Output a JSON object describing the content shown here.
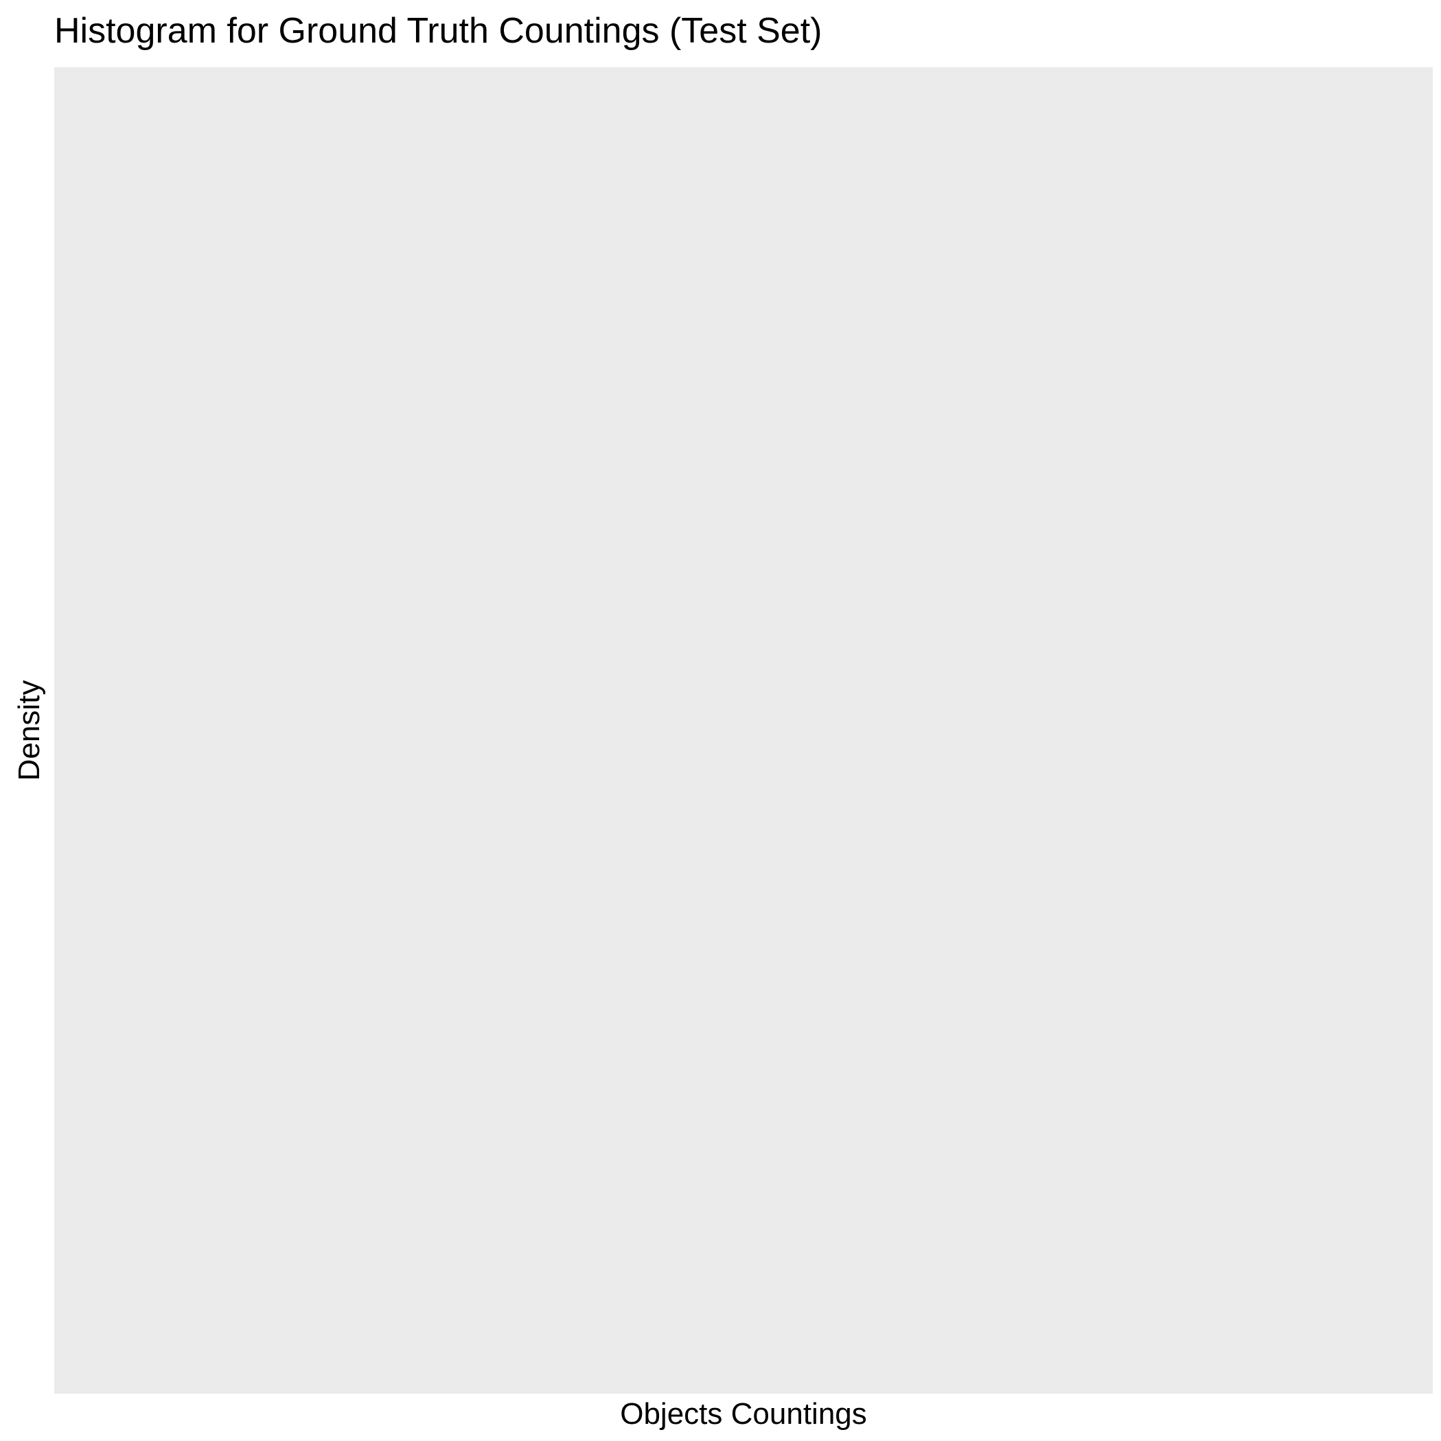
{
  "colors": {
    "panel_background": "#ebebeb",
    "page_background": "#ffffff",
    "text": "#000000"
  },
  "chart_data": {
    "type": "bar",
    "title": "Histogram for Ground Truth Countings (Test Set)",
    "xlabel": "Objects Countings",
    "ylabel": "Density",
    "categories": [],
    "values": [],
    "grid": false
  }
}
